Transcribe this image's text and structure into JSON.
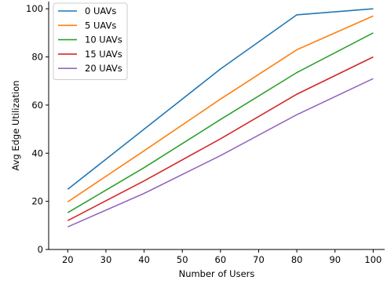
{
  "chart_data": {
    "type": "line",
    "xlabel": "Number of Users",
    "ylabel": "Avg Edge Utilization",
    "x": [
      20,
      40,
      60,
      80,
      100
    ],
    "xlim": [
      15,
      103
    ],
    "ylim": [
      0,
      103
    ],
    "xticks": [
      20,
      30,
      40,
      50,
      60,
      70,
      80,
      90,
      100
    ],
    "yticks": [
      0,
      20,
      40,
      60,
      80,
      100
    ],
    "grid": false,
    "legend_position": "top-left",
    "series": [
      {
        "name": "0 UAVs",
        "color": "#1f77b4",
        "values": [
          25.0,
          50.0,
          75.0,
          97.5,
          100.0
        ]
      },
      {
        "name": "5 UAVs",
        "color": "#ff7f0e",
        "values": [
          19.8,
          41.0,
          62.5,
          83.0,
          97.0
        ]
      },
      {
        "name": "10 UAVs",
        "color": "#2ca02c",
        "values": [
          15.3,
          34.0,
          54.0,
          73.5,
          90.0
        ]
      },
      {
        "name": "15 UAVs",
        "color": "#d62728",
        "values": [
          12.0,
          28.5,
          46.0,
          64.5,
          80.0
        ]
      },
      {
        "name": "20 UAVs",
        "color": "#9467bd",
        "values": [
          9.4,
          23.3,
          39.0,
          56.0,
          71.0
        ]
      }
    ]
  }
}
